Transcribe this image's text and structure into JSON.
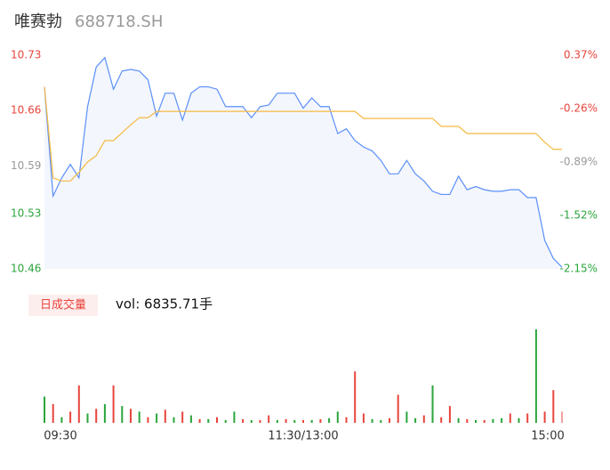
{
  "chart_data": {
    "type": "intraday",
    "title": "唯赛勃",
    "subtitle": "688718.SH",
    "volume_title": "日成交量",
    "volume_text": "vol: 6835.71手",
    "xlim": [
      0,
      240
    ],
    "xticks": [
      {
        "value": 0,
        "label": "09:30"
      },
      {
        "value": 120,
        "label": "11:30/13:00"
      },
      {
        "value": 240,
        "label": "15:00"
      }
    ],
    "ylim": [
      10.46,
      10.73
    ],
    "yticks": [
      10.46,
      10.53,
      10.59,
      10.66,
      10.73
    ],
    "y2lim": [
      -2.15,
      0.37
    ],
    "y2ticks": [
      {
        "value": -2.15,
        "label": "-2.15%"
      },
      {
        "value": -1.52,
        "label": "-1.52%"
      },
      {
        "value": -0.89,
        "label": "-0.89%"
      },
      {
        "value": -0.26,
        "label": "-0.26%"
      },
      {
        "value": 0.37,
        "label": "0.37%"
      }
    ],
    "tick_colors": [
      "#2aa53b",
      "#2aa53b",
      "#999999",
      "#e8453c",
      "#e8453c"
    ],
    "x": [
      0,
      4,
      8,
      12,
      16,
      20,
      24,
      28,
      32,
      36,
      40,
      44,
      48,
      52,
      56,
      60,
      64,
      68,
      72,
      76,
      80,
      84,
      88,
      92,
      96,
      100,
      104,
      108,
      112,
      116,
      120,
      124,
      128,
      132,
      136,
      140,
      144,
      148,
      152,
      156,
      160,
      164,
      168,
      172,
      176,
      180,
      184,
      188,
      192,
      196,
      200,
      204,
      208,
      212,
      216,
      220,
      224,
      228,
      232,
      236,
      240
    ],
    "series": [
      {
        "color": "#5b8ff9",
        "values": [
          10.69,
          10.552,
          10.575,
          10.592,
          10.575,
          10.665,
          10.715,
          10.727,
          10.687,
          10.71,
          10.712,
          10.71,
          10.699,
          10.653,
          10.682,
          10.682,
          10.648,
          10.682,
          10.69,
          10.69,
          10.687,
          10.665,
          10.665,
          10.665,
          10.651,
          10.665,
          10.667,
          10.682,
          10.682,
          10.682,
          10.663,
          10.676,
          10.665,
          10.665,
          10.631,
          10.637,
          10.622,
          10.614,
          10.609,
          10.597,
          10.58,
          10.58,
          10.597,
          10.58,
          10.571,
          10.558,
          10.554,
          10.554,
          10.577,
          10.56,
          10.564,
          10.56,
          10.558,
          10.558,
          10.56,
          10.56,
          10.55,
          10.55,
          10.496,
          10.473,
          10.462
        ]
      },
      {
        "color": "#f5b942",
        "values": [
          10.69,
          10.575,
          10.571,
          10.571,
          10.582,
          10.595,
          10.603,
          10.622,
          10.622,
          10.632,
          10.642,
          10.651,
          10.651,
          10.659,
          10.659,
          10.659,
          10.659,
          10.659,
          10.659,
          10.659,
          10.659,
          10.659,
          10.659,
          10.659,
          10.659,
          10.659,
          10.659,
          10.659,
          10.659,
          10.659,
          10.659,
          10.659,
          10.659,
          10.659,
          10.659,
          10.659,
          10.659,
          10.65,
          10.65,
          10.65,
          10.65,
          10.65,
          10.65,
          10.65,
          10.65,
          10.65,
          10.64,
          10.64,
          10.64,
          10.631,
          10.631,
          10.631,
          10.631,
          10.631,
          10.631,
          10.631,
          10.631,
          10.631,
          10.62,
          10.611,
          10.611
        ]
      }
    ],
    "volume": {
      "values": [
        28,
        20,
        6,
        12,
        40,
        10,
        15,
        20,
        40,
        18,
        15,
        12,
        6,
        10,
        14,
        6,
        12,
        8,
        4,
        4,
        6,
        3,
        12,
        4,
        3,
        3,
        8,
        3,
        4,
        3,
        3,
        3,
        4,
        5,
        12,
        6,
        55,
        10,
        4,
        3,
        5,
        30,
        12,
        5,
        8,
        40,
        6,
        18,
        5,
        4,
        3,
        3,
        4,
        5,
        10,
        5,
        10,
        100,
        12,
        35,
        12
      ],
      "colors": [
        "#2aa53b",
        "#e8453c",
        "#2aa53b",
        "#e8453c",
        "#e8453c",
        "#2aa53b",
        "#e8453c",
        "#2aa53b",
        "#e8453c",
        "#2aa53b",
        "#e8453c",
        "#2aa53b",
        "#e8453c",
        "#2aa53b",
        "#e8453c",
        "#2aa53b",
        "#e8453c",
        "#2aa53b",
        "#e8453c",
        "#2aa53b",
        "#e8453c",
        "#2aa53b",
        "#2aa53b",
        "#e8453c",
        "#2aa53b",
        "#e8453c",
        "#e8453c",
        "#2aa53b",
        "#e8453c",
        "#2aa53b",
        "#e8453c",
        "#2aa53b",
        "#e8453c",
        "#2aa53b",
        "#2aa53b",
        "#e8453c",
        "#e8453c",
        "#e8453c",
        "#2aa53b",
        "#2aa53b",
        "#e8453c",
        "#e8453c",
        "#2aa53b",
        "#2aa53b",
        "#e8453c",
        "#2aa53b",
        "#e8453c",
        "#e8453c",
        "#2aa53b",
        "#e8453c",
        "#2aa53b",
        "#e8453c",
        "#2aa53b",
        "#2aa53b",
        "#e8453c",
        "#2aa53b",
        "#e8453c",
        "#2aa53b",
        "#e8453c",
        "#e8453c",
        "#f4a0a0"
      ]
    }
  }
}
